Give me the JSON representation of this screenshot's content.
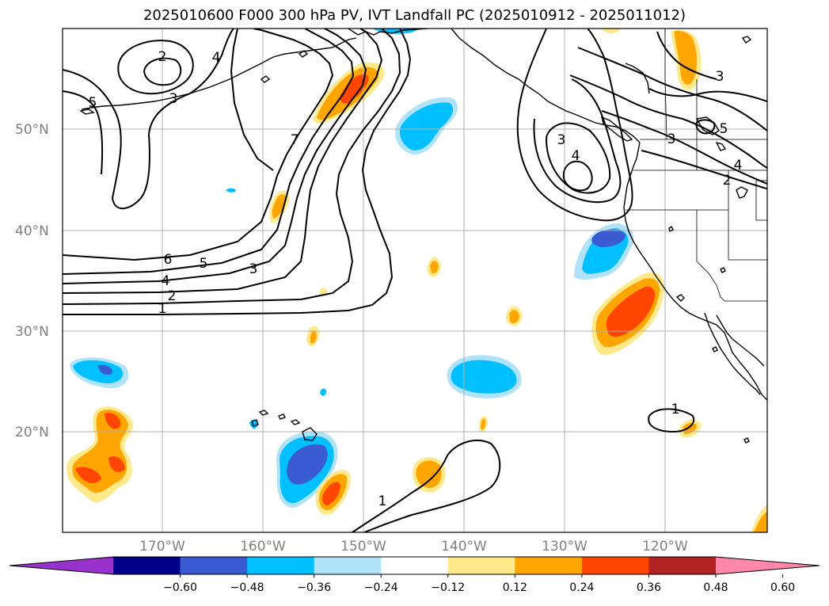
{
  "title": "2025010600 F000 300 hPa PV, IVT Landfall PC (2025010912 - 2025011012)",
  "lat_labels": [
    "50°N",
    "40°N",
    "30°N",
    "20°N"
  ],
  "lon_labels": [
    "170°W",
    "160°W",
    "150°W",
    "140°W",
    "130°W",
    "120°W"
  ],
  "contour_labels": [
    "1",
    "2",
    "3",
    "4",
    "5",
    "6",
    "2",
    "3",
    "4",
    "5",
    "1",
    "7",
    "1",
    "3",
    "3",
    "4",
    "4",
    "5",
    "3",
    "2"
  ],
  "colorbar": {
    "ticks": [
      "−0.60",
      "−0.48",
      "−0.36",
      "−0.24",
      "−0.12",
      "0.12",
      "0.24",
      "0.36",
      "0.48",
      "0.60"
    ],
    "colors": [
      "#9932cc",
      "#00008b",
      "#3a5bd1",
      "#00bfff",
      "#b0e2fa",
      "#ffffff",
      "#ffe98a",
      "#ffa500",
      "#ff4500",
      "#b22222",
      "#ff88aa"
    ],
    "min_color": "#9932cc",
    "max_color": "#ff88aa"
  }
}
